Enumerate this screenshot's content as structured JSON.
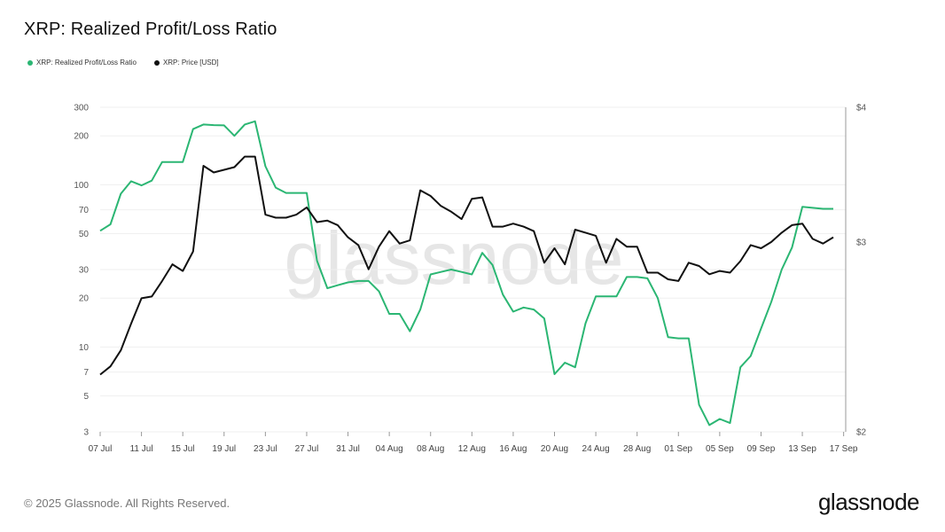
{
  "title": "XRP: Realized Profit/Loss Ratio",
  "legend": [
    {
      "label": "XRP: Realized Profit/Loss Ratio",
      "color": "#2bb673"
    },
    {
      "label": "XRP: Price [USD]",
      "color": "#111111"
    }
  ],
  "watermark": "glassnode",
  "footer": {
    "copyright": "© 2025 Glassnode. All Rights Reserved.",
    "logo": "glassnode"
  },
  "chart_data": {
    "type": "line",
    "x_tick_labels": [
      "07 Jul",
      "11 Jul",
      "15 Jul",
      "19 Jul",
      "23 Jul",
      "27 Jul",
      "31 Jul",
      "04 Aug",
      "08 Aug",
      "12 Aug",
      "16 Aug",
      "20 Aug",
      "24 Aug",
      "28 Aug",
      "01 Sep",
      "05 Sep",
      "09 Sep",
      "13 Sep",
      "17 Sep"
    ],
    "x_start": "2025-07-07",
    "left_axis": {
      "scale": "log",
      "ylim": [
        3,
        300
      ],
      "ticks": [
        3,
        5,
        7,
        10,
        20,
        30,
        50,
        70,
        100,
        200,
        300
      ],
      "tick_labels": [
        "3",
        "5",
        "7",
        "10",
        "20",
        "30",
        "50",
        "70",
        "100",
        "200",
        "300"
      ]
    },
    "right_axis": {
      "scale": "log",
      "ylim": [
        2,
        4
      ],
      "ticks": [
        2,
        3,
        4
      ],
      "tick_labels": [
        "$2",
        "$3",
        "$4"
      ]
    },
    "series": [
      {
        "name": "XRP: Realized Profit/Loss Ratio",
        "axis": "left",
        "color": "#2bb673",
        "values": [
          52,
          57,
          88,
          105,
          99,
          106,
          138,
          138,
          138,
          220,
          235,
          233,
          232,
          200,
          235,
          246,
          130,
          96,
          89,
          89,
          89,
          34,
          23,
          24,
          25,
          25.5,
          25.5,
          22,
          16,
          16,
          12.5,
          17,
          28,
          29,
          30,
          29,
          28,
          38,
          32,
          21,
          16.5,
          17.5,
          17,
          15,
          6.8,
          8,
          7.5,
          14,
          20.5,
          20.5,
          20.5,
          27,
          27,
          26.5,
          20,
          11.5,
          11.3,
          11.3,
          4.4,
          3.3,
          3.6,
          3.4,
          7.5,
          8.8,
          13,
          19,
          30,
          41,
          73,
          72,
          71,
          71
        ]
      },
      {
        "name": "XRP: Price [USD]",
        "axis": "right",
        "color": "#111111",
        "values": [
          2.26,
          2.3,
          2.38,
          2.52,
          2.66,
          2.67,
          2.76,
          2.86,
          2.82,
          2.94,
          3.53,
          3.48,
          3.5,
          3.52,
          3.6,
          3.6,
          3.18,
          3.16,
          3.16,
          3.18,
          3.23,
          3.13,
          3.14,
          3.11,
          3.03,
          2.98,
          2.83,
          2.97,
          3.07,
          2.99,
          3.01,
          3.35,
          3.31,
          3.24,
          3.2,
          3.15,
          3.29,
          3.3,
          3.1,
          3.1,
          3.12,
          3.1,
          3.07,
          2.87,
          2.96,
          2.86,
          3.08,
          3.06,
          3.04,
          2.87,
          3.02,
          2.97,
          2.97,
          2.81,
          2.81,
          2.77,
          2.76,
          2.87,
          2.85,
          2.8,
          2.82,
          2.81,
          2.88,
          2.98,
          2.96,
          3,
          3.06,
          3.11,
          3.12,
          3.02,
          2.99,
          3.03
        ]
      }
    ],
    "ylabel": "",
    "xlabel": "",
    "grid": true,
    "legend_position": "top-left"
  }
}
